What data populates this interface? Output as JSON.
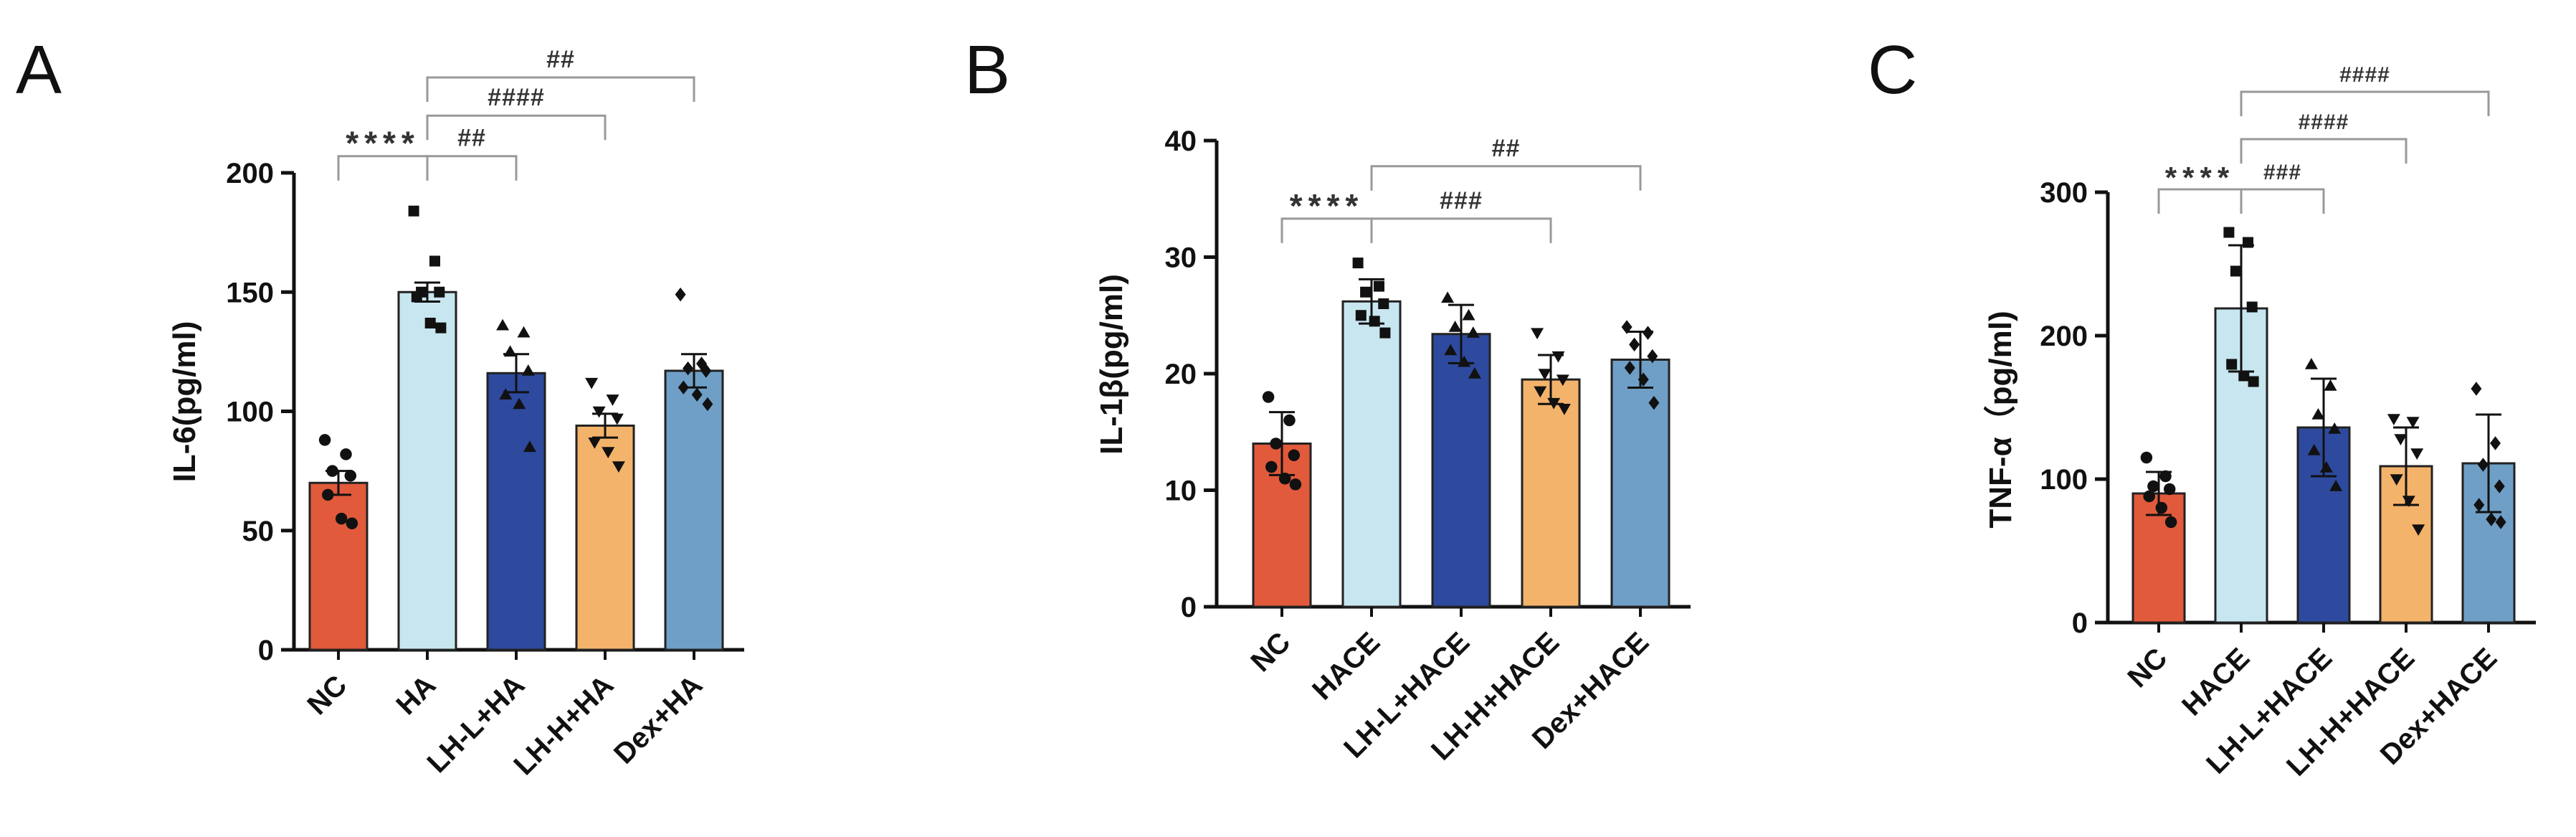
{
  "chart_data": [
    {
      "type": "bar",
      "panel": "A",
      "ylabel": "IL-6(pg/ml)",
      "ylim": [
        0,
        200
      ],
      "yticks": [
        "0",
        "50",
        "100",
        "150",
        "200"
      ],
      "categories": [
        "NC",
        "HA",
        "LH-L+HA",
        "LH-H+HA",
        "Dex+HA"
      ],
      "values": [
        70,
        150,
        116,
        94,
        117
      ],
      "errors": [
        5,
        4,
        8,
        5,
        7
      ],
      "colors": [
        "#e15a3b",
        "#c8e6f0",
        "#2e4a9e",
        "#f4b36b",
        "#6f9fc6"
      ],
      "points": [
        [
          88,
          82,
          75,
          73,
          65,
          55,
          53
        ],
        [
          184,
          163,
          150,
          150,
          148,
          137,
          135
        ],
        [
          136,
          133,
          125,
          117,
          107,
          103,
          85
        ],
        [
          112,
          105,
          100,
          97,
          87,
          83,
          77
        ],
        [
          149,
          120,
          118,
          117,
          110,
          107,
          103
        ]
      ],
      "markers": [
        "circle",
        "square",
        "triangle",
        "triangle-down",
        "diamond"
      ],
      "comparisons": [
        {
          "from": 0,
          "to": 1,
          "label": "****",
          "y": 207
        },
        {
          "from": 1,
          "to": 2,
          "label": "##",
          "y": 207
        },
        {
          "from": 1,
          "to": 3,
          "label": "####",
          "y": 224
        },
        {
          "from": 1,
          "to": 4,
          "label": "##",
          "y": 240
        }
      ]
    },
    {
      "type": "bar",
      "panel": "B",
      "ylabel": "IL-1β(pg/ml)",
      "ylim": [
        0,
        40
      ],
      "yticks": [
        "0",
        "10",
        "20",
        "30",
        "40"
      ],
      "categories": [
        "NC",
        "HACE",
        "LH-L+HACE",
        "LH-H+HACE",
        "Dex+HACE"
      ],
      "values": [
        14,
        26.2,
        23.4,
        19.5,
        21.2
      ],
      "errors": [
        2.7,
        1.9,
        2.5,
        2.1,
        2.4
      ],
      "colors": [
        "#e15a3b",
        "#c8e6f0",
        "#2e4a9e",
        "#f4b36b",
        "#6f9fc6"
      ],
      "points": [
        [
          18,
          16,
          14,
          13,
          12,
          11,
          10.5
        ],
        [
          29.5,
          27.5,
          27,
          26,
          25,
          24.5,
          23.5
        ],
        [
          26.5,
          25,
          24,
          23.5,
          22,
          21,
          20
        ],
        [
          23.5,
          21.5,
          20,
          19.5,
          18.5,
          17.5,
          17
        ],
        [
          24,
          23.5,
          22.5,
          21.5,
          20.5,
          19.5,
          17.5
        ]
      ],
      "markers": [
        "circle",
        "square",
        "triangle",
        "triangle-down",
        "diamond"
      ],
      "comparisons": [
        {
          "from": 0,
          "to": 1,
          "label": "****",
          "y": 33.3
        },
        {
          "from": 1,
          "to": 3,
          "label": "###",
          "y": 33.3
        },
        {
          "from": 1,
          "to": 4,
          "label": "##",
          "y": 37.8
        }
      ]
    },
    {
      "type": "bar",
      "panel": "C",
      "ylabel": "TNF-α（pg/ml)",
      "ylim": [
        0,
        300
      ],
      "yticks": [
        "0",
        "100",
        "200",
        "300"
      ],
      "categories": [
        "NC",
        "HACE",
        "LH-L+HACE",
        "LH-H+HACE",
        "Dex+HACE"
      ],
      "values": [
        90,
        219,
        136,
        109,
        111
      ],
      "errors": [
        15,
        44,
        34,
        27,
        34
      ],
      "colors": [
        "#e15a3b",
        "#c8e6f0",
        "#2e4a9e",
        "#f4b36b",
        "#6f9fc6"
      ],
      "points": [
        [
          115,
          102,
          95,
          93,
          88,
          80,
          70
        ],
        [
          272,
          265,
          245,
          220,
          180,
          172,
          168
        ],
        [
          180,
          165,
          145,
          135,
          120,
          108,
          95
        ],
        [
          142,
          140,
          128,
          118,
          100,
          85,
          65
        ],
        [
          163,
          125,
          110,
          95,
          82,
          72,
          70
        ]
      ],
      "markers": [
        "circle",
        "square",
        "triangle",
        "triangle-down",
        "diamond"
      ],
      "comparisons": [
        {
          "from": 0,
          "to": 1,
          "label": "****",
          "y": 302
        },
        {
          "from": 1,
          "to": 2,
          "label": "###",
          "y": 302
        },
        {
          "from": 1,
          "to": 3,
          "label": "####",
          "y": 337
        },
        {
          "from": 1,
          "to": 4,
          "label": "####",
          "y": 370
        }
      ]
    }
  ]
}
